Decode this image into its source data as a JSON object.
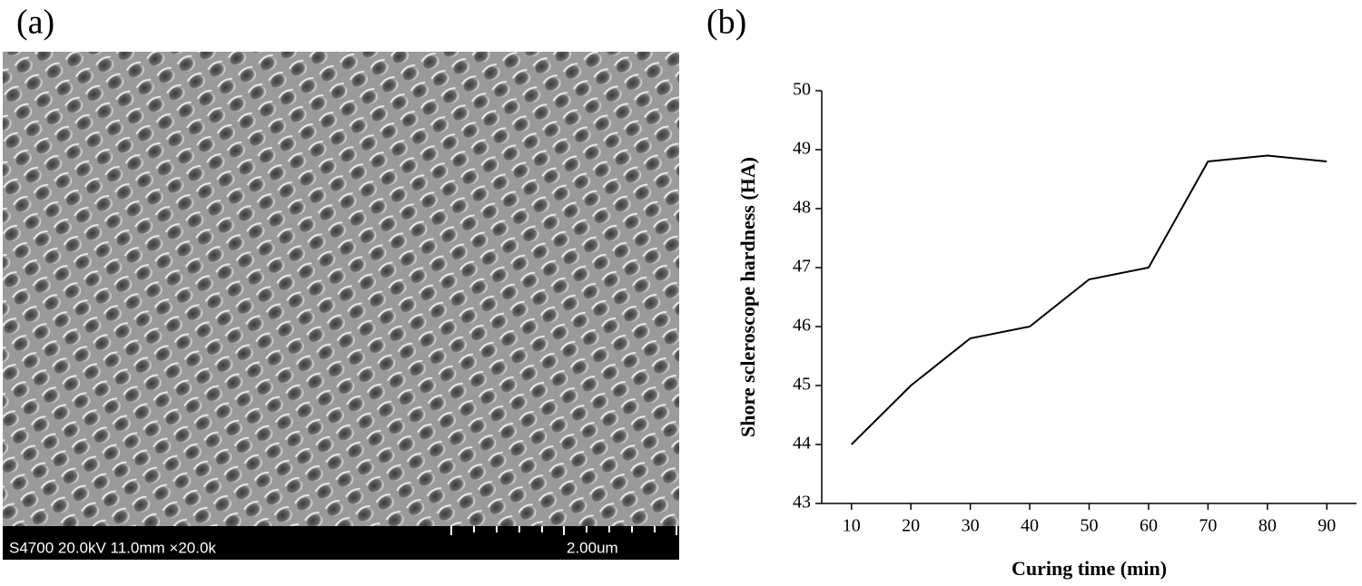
{
  "panel_labels": [
    "(a)",
    "(b)"
  ],
  "sem_image": {
    "info": "S4700 20.0kV 11.0mm ×20.0k",
    "scale": "2.00um"
  },
  "chart_data": {
    "type": "line",
    "x_label": "Curing time (min)",
    "y_label": "Shore scleroscope hardness (HA)",
    "x": [
      10,
      20,
      30,
      40,
      50,
      60,
      70,
      80,
      90
    ],
    "values": [
      44,
      45,
      45.8,
      46,
      46.8,
      47,
      48.8,
      48.9,
      48.8
    ],
    "color": "#000000",
    "xlim": [
      5,
      95
    ],
    "xticks": [
      10,
      20,
      30,
      40,
      50,
      60,
      70,
      80,
      90
    ],
    "ylim": [
      43,
      50
    ],
    "yticks": [
      43,
      44,
      45,
      46,
      47,
      48,
      49,
      50
    ]
  }
}
